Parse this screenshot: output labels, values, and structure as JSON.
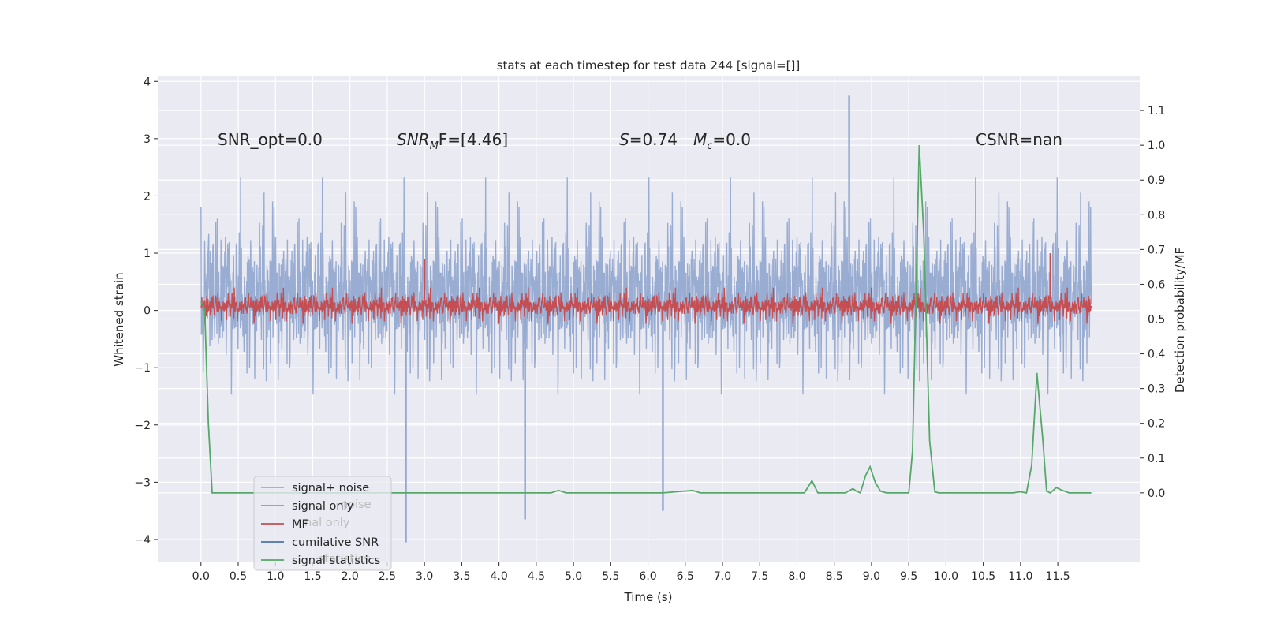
{
  "chart_data": {
    "type": "line",
    "title": "stats at each timestep for test data 244 [signal=[]]",
    "xlabel": "Time (s)",
    "ylabel": "Whitened strain",
    "y2label": "Detection probability/MF",
    "xlim": [
      -0.58,
      12.6
    ],
    "ylim": [
      -4.4,
      4.1
    ],
    "y2lim": [
      -0.2,
      1.2
    ],
    "x_ticks": [
      "0.0",
      "0.5",
      "1.0",
      "1.5",
      "2.0",
      "2.5",
      "3.0",
      "3.5",
      "4.0",
      "4.5",
      "5.0",
      "5.5",
      "6.0",
      "6.5",
      "7.0",
      "7.5",
      "8.0",
      "8.5",
      "9.0",
      "9.5",
      "10.0",
      "10.5",
      "11.0",
      "11.5"
    ],
    "y_ticks": [
      "4",
      "3",
      "2",
      "1",
      "0",
      "−1",
      "−2",
      "−3",
      "−4"
    ],
    "y2_ticks": [
      "1.1",
      "1.0",
      "0.9",
      "0.8",
      "0.7",
      "0.6",
      "0.5",
      "0.4",
      "0.3",
      "0.2",
      "0.1",
      "0.0"
    ],
    "grid": true,
    "legend_position": "lower-left",
    "annotations": {
      "snr_opt": "SNR_opt=0.0",
      "snr_mf_main": "SNR",
      "snr_mf_sub": "M",
      "snr_mf_rest": "F=[4.46]",
      "s_main": "S",
      "s_rest": "=0.74",
      "mc_main": "M",
      "mc_sub": "c",
      "mc_rest": "=0.0",
      "csnr": "CSNR=nan"
    },
    "ghost_text": [
      "noise",
      "nal only",
      "statistics"
    ],
    "series": [
      {
        "name": "signal+ noise",
        "color": "#95a9d0",
        "description_range": [
          -4.05,
          3.75
        ],
        "peaks": [
          {
            "x": 2.75,
            "y": -4.05
          },
          {
            "x": 4.35,
            "y": -3.65
          },
          {
            "x": 8.7,
            "y": 3.75
          },
          {
            "x": 6.2,
            "y": -3.5
          }
        ]
      },
      {
        "name": "signal only",
        "color": "#dd8452",
        "values": []
      },
      {
        "name": "MF",
        "color": "#c44e52",
        "typical_range": [
          -0.4,
          0.45
        ],
        "peaks": [
          {
            "x": 11.4,
            "y": 1.0
          },
          {
            "x": 3.0,
            "y": 0.9
          }
        ]
      },
      {
        "name": "cumilative SNR",
        "color": "#4c72b0",
        "values": []
      },
      {
        "name": "signal statistics",
        "color": "#55a868",
        "axis": "right",
        "points": [
          [
            0.0,
            0.55
          ],
          [
            0.05,
            0.53
          ],
          [
            0.1,
            0.2
          ],
          [
            0.15,
            0.0
          ],
          [
            0.3,
            0.0
          ],
          [
            4.7,
            0.0
          ],
          [
            4.8,
            0.007
          ],
          [
            4.9,
            0.0
          ],
          [
            6.2,
            0.0
          ],
          [
            6.6,
            0.007
          ],
          [
            6.7,
            0.0
          ],
          [
            8.1,
            0.0
          ],
          [
            8.2,
            0.035
          ],
          [
            8.28,
            0.0
          ],
          [
            8.65,
            0.0
          ],
          [
            8.75,
            0.012
          ],
          [
            8.8,
            0.005
          ],
          [
            8.85,
            0.0
          ],
          [
            8.92,
            0.05
          ],
          [
            8.98,
            0.075
          ],
          [
            9.05,
            0.03
          ],
          [
            9.12,
            0.005
          ],
          [
            9.2,
            0.0
          ],
          [
            9.5,
            0.0
          ],
          [
            9.55,
            0.12
          ],
          [
            9.6,
            0.6
          ],
          [
            9.64,
            1.0
          ],
          [
            9.7,
            0.75
          ],
          [
            9.78,
            0.15
          ],
          [
            9.85,
            0.003
          ],
          [
            9.9,
            0.0
          ],
          [
            10.9,
            0.0
          ],
          [
            11.0,
            0.003
          ],
          [
            11.08,
            0.0
          ],
          [
            11.15,
            0.08
          ],
          [
            11.22,
            0.345
          ],
          [
            11.3,
            0.15
          ],
          [
            11.35,
            0.005
          ],
          [
            11.4,
            0.0
          ],
          [
            11.48,
            0.015
          ],
          [
            11.55,
            0.008
          ],
          [
            11.65,
            0.0
          ],
          [
            11.95,
            0.0
          ]
        ]
      }
    ]
  }
}
